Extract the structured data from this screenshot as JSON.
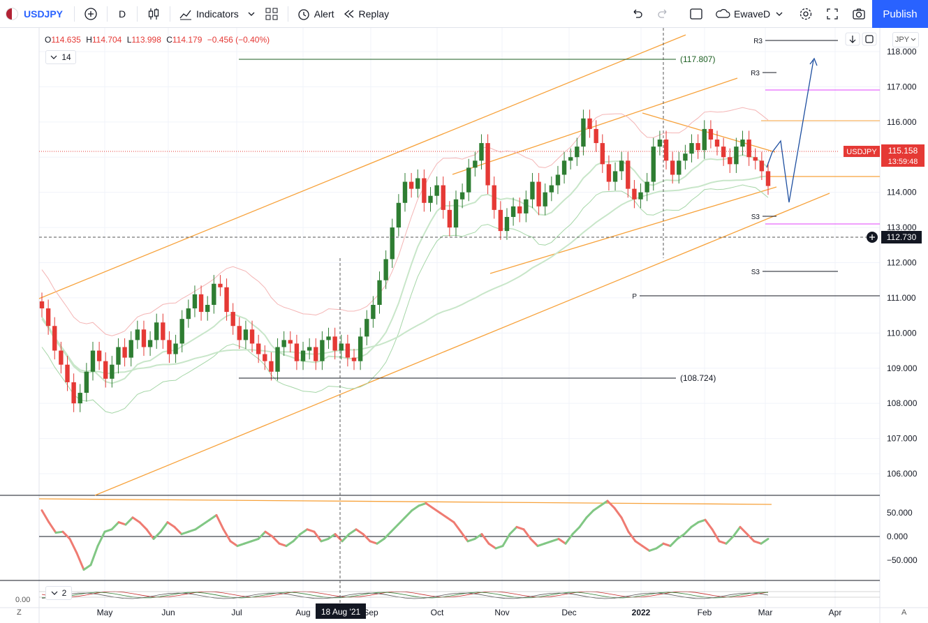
{
  "toolbar": {
    "symbol": "USDJPY",
    "interval": "D",
    "indicators_label": "Indicators",
    "alert_label": "Alert",
    "replay_label": "Replay",
    "layout_name": "EwaveD",
    "publish_label": "Publish"
  },
  "legend": {
    "open_label": "O",
    "open": "114.635",
    "high_label": "H",
    "high": "114.704",
    "low_label": "L",
    "low": "113.998",
    "close_label": "C",
    "close": "114.179",
    "change": "−0.456 (−0.40%)",
    "period_badge": "14",
    "currency_button": "JPY"
  },
  "price_tags": {
    "symbol_tag": "USDJPY",
    "last_price": "115.158",
    "countdown": "13:59:48",
    "crosshair_price": "112.730"
  },
  "crosshair_date": "18 Aug '21",
  "colors": {
    "up": "#2e7d32",
    "down": "#e53935",
    "channel": "#f7a23b",
    "bollinger_outer": "#f4b4b4",
    "bollinger_mid": "#a5d6a7",
    "ma": "#c8e6c9",
    "projection": "#1e4fa0",
    "pivot_magenta": "#e040fb",
    "accent": "#2962ff"
  },
  "chart_data": {
    "type": "candlestick",
    "symbol": "USDJPY",
    "interval": "D",
    "yaxis_range": [
      105.4,
      118.6
    ],
    "y_ticks": [
      "118.000",
      "117.000",
      "116.000",
      "115.000",
      "114.000",
      "113.000",
      "112.000",
      "111.000",
      "110.000",
      "109.000",
      "108.000",
      "107.000",
      "106.000"
    ],
    "x_ticks": [
      "May",
      "Jun",
      "Jul",
      "Aug",
      "Sep",
      "Oct",
      "Nov",
      "Dec",
      "2022",
      "Feb",
      "Mar",
      "Apr"
    ],
    "closes": [
      110.7,
      110.2,
      109.5,
      109.1,
      108.6,
      108.0,
      108.3,
      108.9,
      109.5,
      109.2,
      108.7,
      109.1,
      109.6,
      109.3,
      109.8,
      110.1,
      109.6,
      109.8,
      110.3,
      109.8,
      109.4,
      109.7,
      110.4,
      110.7,
      111.1,
      110.6,
      110.8,
      111.4,
      111.3,
      110.6,
      110.2,
      109.8,
      110.1,
      109.7,
      109.4,
      109.2,
      108.9,
      109.6,
      109.8,
      109.7,
      109.2,
      109.5,
      109.6,
      109.2,
      109.8,
      109.9,
      109.5,
      109.7,
      109.3,
      109.2,
      109.9,
      110.4,
      110.8,
      111.5,
      112.1,
      113.0,
      113.7,
      114.3,
      114.1,
      114.4,
      113.7,
      113.9,
      114.2,
      113.5,
      113.0,
      113.8,
      114.0,
      114.7,
      114.9,
      115.4,
      114.2,
      113.5,
      112.9,
      113.3,
      113.6,
      113.4,
      113.8,
      114.3,
      113.6,
      114.0,
      114.2,
      114.5,
      114.9,
      115.0,
      115.3,
      116.1,
      115.8,
      115.4,
      114.8,
      114.3,
      114.6,
      114.9,
      114.1,
      113.8,
      114.0,
      114.3,
      115.3,
      115.5,
      114.9,
      114.5,
      114.9,
      115.1,
      115.4,
      115.2,
      115.8,
      115.5,
      115.3,
      115.0,
      114.8,
      115.3,
      115.5,
      115.0,
      114.9,
      114.6,
      114.18
    ],
    "annotations": {
      "horizontal_labels": [
        "(117.807)",
        "(108.724)"
      ],
      "pivot_labels": [
        "R3",
        "R3",
        "S3",
        "S3",
        "P"
      ]
    },
    "oscillator": {
      "y_ticks": [
        "50.000",
        "0.000",
        "−50.000"
      ],
      "values": [
        55,
        30,
        8,
        10,
        -5,
        -35,
        -70,
        -60,
        -20,
        10,
        15,
        30,
        25,
        40,
        30,
        15,
        -5,
        10,
        30,
        20,
        5,
        10,
        15,
        25,
        35,
        45,
        15,
        -10,
        -20,
        -15,
        -10,
        -5,
        10,
        0,
        -15,
        -20,
        -10,
        5,
        15,
        10,
        -10,
        -5,
        5,
        -10,
        5,
        15,
        5,
        -10,
        -15,
        -5,
        10,
        25,
        40,
        55,
        65,
        70,
        60,
        50,
        40,
        30,
        10,
        -10,
        -5,
        5,
        -15,
        -25,
        -20,
        5,
        20,
        15,
        -5,
        -20,
        -15,
        -10,
        -5,
        -15,
        5,
        20,
        40,
        55,
        65,
        75,
        60,
        40,
        10,
        -10,
        -20,
        -30,
        -25,
        -15,
        -20,
        -5,
        5,
        20,
        30,
        35,
        15,
        -10,
        -15,
        0,
        20,
        5,
        -10,
        -15,
        -5
      ],
      "reference_label": "0.00"
    },
    "sub_panel_badge": "2"
  },
  "axis_labels": {
    "bottom_left": "Z",
    "bottom_right": "A"
  }
}
